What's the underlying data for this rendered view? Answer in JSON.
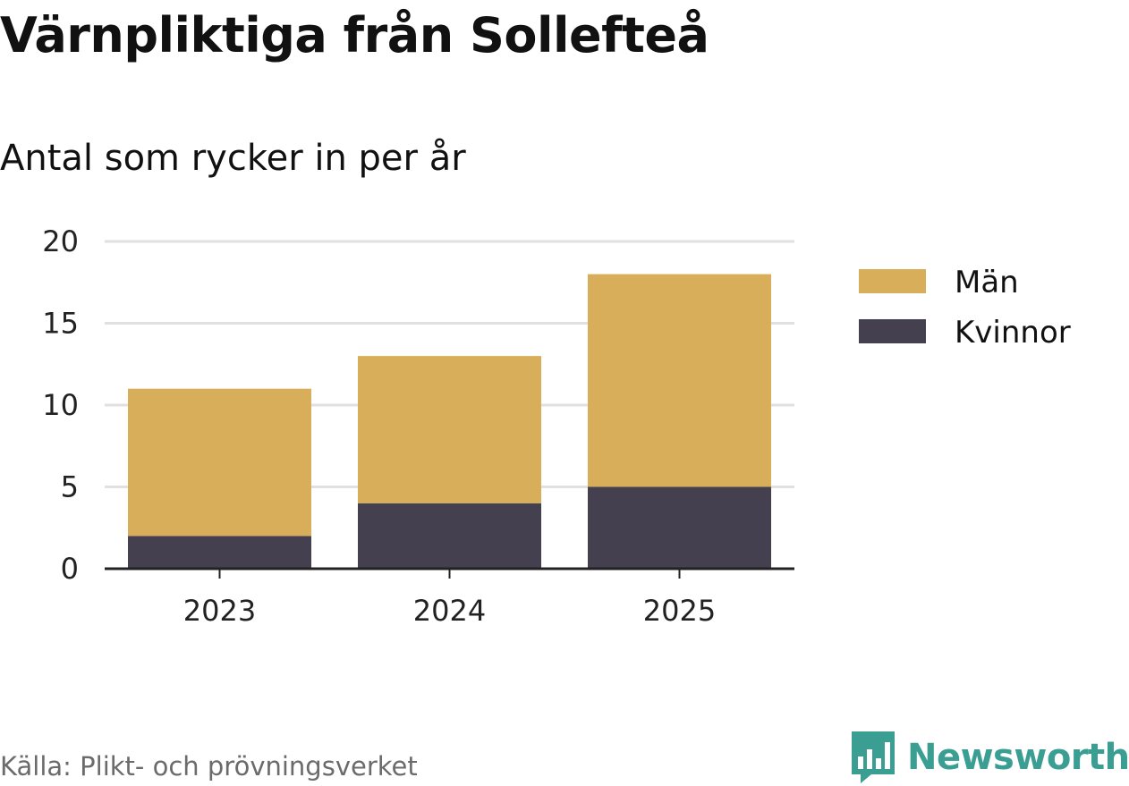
{
  "title": "Värnpliktiga från Sollefteå",
  "subtitle": "Antal som rycker in per år",
  "source": "Källa: Plikt- och prövningsverket",
  "brand": {
    "name": "Newsworthy",
    "icon": "newsworthy-logo-icon",
    "color": "#3a9e92"
  },
  "chart_data": {
    "type": "bar",
    "stacked": true,
    "categories": [
      "2023",
      "2024",
      "2025"
    ],
    "series": [
      {
        "name": "Kvinnor",
        "values": [
          2,
          4,
          5
        ],
        "color": "#44404f"
      },
      {
        "name": "Män",
        "values": [
          9,
          9,
          13
        ],
        "color": "#d8ae5a"
      }
    ],
    "legend": {
      "position": "right",
      "entries": [
        "Män",
        "Kvinnor"
      ]
    },
    "ylim": [
      0,
      20
    ],
    "yticks": [
      "0",
      "5",
      "10",
      "15",
      "20"
    ],
    "ytick_values": [
      0,
      5,
      10,
      15,
      20
    ],
    "grid": true,
    "xlabel": "",
    "ylabel": ""
  }
}
